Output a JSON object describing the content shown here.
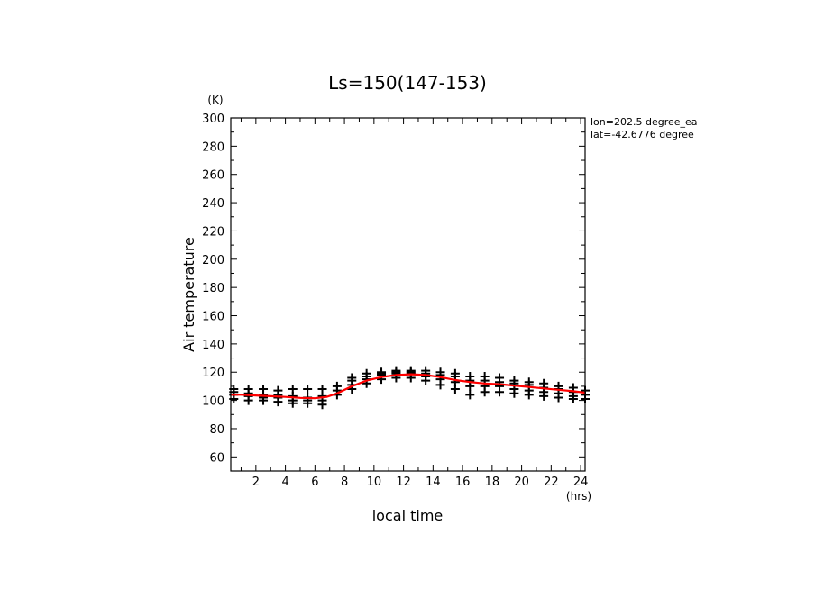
{
  "chart_data": {
    "type": "scatter",
    "title": "Ls=150(147-153)",
    "xlabel": "local time",
    "ylabel": "Air temperature",
    "x_unit": "(hrs)",
    "y_unit": "(K)",
    "xlim": [
      0.3,
      24.3
    ],
    "ylim": [
      50,
      300
    ],
    "x_ticks": [
      2,
      4,
      6,
      8,
      10,
      12,
      14,
      16,
      18,
      20,
      22,
      24
    ],
    "y_ticks": [
      60,
      80,
      100,
      120,
      140,
      160,
      180,
      200,
      220,
      240,
      260,
      280,
      300
    ],
    "annotations": [
      "lon=202.5 degree_ea",
      "lat=-42.6776 degree"
    ],
    "colors": {
      "points": "#000000",
      "mean_line": "#ff0000"
    },
    "series": [
      {
        "marker": "plus",
        "points": [
          [
            0.5,
            101
          ],
          [
            0.5,
            104
          ],
          [
            0.5,
            106
          ],
          [
            0.5,
            108
          ],
          [
            1.5,
            100
          ],
          [
            1.5,
            103
          ],
          [
            1.5,
            105
          ],
          [
            1.5,
            108
          ],
          [
            2.5,
            100
          ],
          [
            2.5,
            102
          ],
          [
            2.5,
            104
          ],
          [
            2.5,
            108
          ],
          [
            3.5,
            99
          ],
          [
            3.5,
            102
          ],
          [
            3.5,
            104
          ],
          [
            3.5,
            107
          ],
          [
            4.5,
            98
          ],
          [
            4.5,
            100
          ],
          [
            4.5,
            103
          ],
          [
            4.5,
            108
          ],
          [
            5.5,
            98
          ],
          [
            5.5,
            100
          ],
          [
            5.5,
            102
          ],
          [
            5.5,
            108
          ],
          [
            6.5,
            97
          ],
          [
            6.5,
            100
          ],
          [
            6.5,
            103
          ],
          [
            6.5,
            108
          ],
          [
            7.5,
            104
          ],
          [
            7.5,
            107
          ],
          [
            7.5,
            110
          ],
          [
            8.5,
            108
          ],
          [
            8.5,
            111
          ],
          [
            8.5,
            114
          ],
          [
            8.5,
            116
          ],
          [
            9.5,
            112
          ],
          [
            9.5,
            115
          ],
          [
            9.5,
            117
          ],
          [
            9.5,
            119
          ],
          [
            10.5,
            115
          ],
          [
            10.5,
            118
          ],
          [
            10.5,
            119
          ],
          [
            10.5,
            120
          ],
          [
            11.5,
            116
          ],
          [
            11.5,
            119
          ],
          [
            11.5,
            120
          ],
          [
            11.5,
            121
          ],
          [
            12.5,
            116
          ],
          [
            12.5,
            119
          ],
          [
            12.5,
            120
          ],
          [
            12.5,
            121
          ],
          [
            13.5,
            114
          ],
          [
            13.5,
            117
          ],
          [
            13.5,
            119
          ],
          [
            13.5,
            121
          ],
          [
            14.5,
            111
          ],
          [
            14.5,
            115
          ],
          [
            14.5,
            118
          ],
          [
            14.5,
            120
          ],
          [
            15.5,
            108
          ],
          [
            15.5,
            113
          ],
          [
            15.5,
            117
          ],
          [
            15.5,
            119
          ],
          [
            16.5,
            104
          ],
          [
            16.5,
            110
          ],
          [
            16.5,
            114
          ],
          [
            16.5,
            117
          ],
          [
            17.5,
            106
          ],
          [
            17.5,
            110
          ],
          [
            17.5,
            114
          ],
          [
            17.5,
            117
          ],
          [
            18.5,
            106
          ],
          [
            18.5,
            110
          ],
          [
            18.5,
            113
          ],
          [
            18.5,
            116
          ],
          [
            19.5,
            105
          ],
          [
            19.5,
            108
          ],
          [
            19.5,
            112
          ],
          [
            19.5,
            114
          ],
          [
            20.5,
            104
          ],
          [
            20.5,
            107
          ],
          [
            20.5,
            111
          ],
          [
            20.5,
            113
          ],
          [
            21.5,
            103
          ],
          [
            21.5,
            106
          ],
          [
            21.5,
            109
          ],
          [
            21.5,
            112
          ],
          [
            22.5,
            102
          ],
          [
            22.5,
            105
          ],
          [
            22.5,
            108
          ],
          [
            22.5,
            110
          ],
          [
            23.5,
            101
          ],
          [
            23.5,
            103
          ],
          [
            23.5,
            106
          ],
          [
            23.5,
            109
          ],
          [
            24.3,
            101
          ],
          [
            24.3,
            104
          ],
          [
            24.3,
            107
          ]
        ]
      },
      {
        "marker": "line",
        "points": [
          [
            0.3,
            104
          ],
          [
            1,
            104
          ],
          [
            2,
            103.5
          ],
          [
            3,
            103
          ],
          [
            4,
            102.5
          ],
          [
            5,
            101.8
          ],
          [
            6,
            101.5
          ],
          [
            6.8,
            102.5
          ],
          [
            7.5,
            105
          ],
          [
            8.5,
            110
          ],
          [
            9.5,
            114
          ],
          [
            10.5,
            116.5
          ],
          [
            11.5,
            118
          ],
          [
            12.5,
            118.5
          ],
          [
            13.5,
            118
          ],
          [
            14.5,
            116.5
          ],
          [
            15.5,
            114.5
          ],
          [
            16.5,
            113
          ],
          [
            17.5,
            112
          ],
          [
            18.5,
            111.5
          ],
          [
            19.5,
            110.5
          ],
          [
            20.5,
            109.5
          ],
          [
            21.5,
            108.5
          ],
          [
            22.5,
            107.5
          ],
          [
            23.5,
            106.5
          ],
          [
            24.3,
            105.5
          ]
        ]
      }
    ]
  }
}
